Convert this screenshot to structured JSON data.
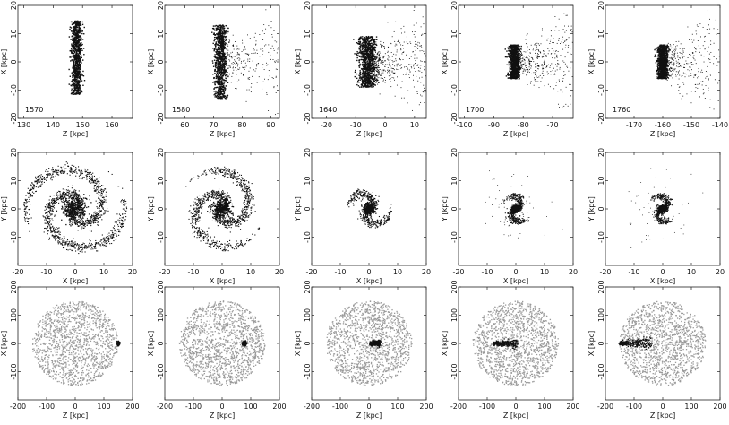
{
  "figure": {
    "colors": {
      "ink": "#111111",
      "halo_gray": "#9a9a9a",
      "frame": "#222222",
      "background": "#ffffff"
    }
  },
  "chart_data": [
    {
      "type": "scatter",
      "id": "top-1570",
      "time_label": "1570",
      "xlabel": "Z [kpc]",
      "ylabel": "X [kpc]",
      "xlim": [
        128,
        167
      ],
      "ylim": [
        -20,
        20
      ],
      "xticks": [
        130,
        140,
        150,
        160
      ],
      "yticks": [
        -20,
        -10,
        0,
        10,
        20
      ],
      "feature": "edge-on disk at Z≈148 spanning X -10..15"
    },
    {
      "type": "scatter",
      "id": "top-1580",
      "time_label": "1580",
      "xlabel": "Z [kpc]",
      "ylabel": "X [kpc]",
      "xlim": [
        53,
        93
      ],
      "ylim": [
        -20,
        20
      ],
      "xticks": [
        60,
        70,
        80,
        90
      ],
      "yticks": [
        -20,
        -10,
        0,
        10,
        20
      ],
      "feature": "edge-on disk at Z≈72 with tail toward +Z"
    },
    {
      "type": "scatter",
      "id": "top-1640",
      "time_label": "1640",
      "xlabel": "Z [kpc]",
      "ylabel": "X [kpc]",
      "xlim": [
        -25,
        14
      ],
      "ylim": [
        -20,
        20
      ],
      "xticks": [
        -20,
        -10,
        0,
        10
      ],
      "yticks": [
        -20,
        -10,
        0,
        10,
        20
      ],
      "feature": "compressed disk at Z≈-6 with wide fan toward +Z"
    },
    {
      "type": "scatter",
      "id": "top-1700",
      "time_label": "1700",
      "xlabel": "Z [kpc]",
      "ylabel": "X [kpc]",
      "xlim": [
        -102,
        -63
      ],
      "ylim": [
        -20,
        20
      ],
      "xticks": [
        -100,
        -90,
        -80,
        -70
      ],
      "yticks": [
        -20,
        -10,
        0,
        10,
        20
      ],
      "feature": "disk at Z≈-83 with stripped fan"
    },
    {
      "type": "scatter",
      "id": "top-1760",
      "time_label": "1760",
      "xlabel": "Z [kpc]",
      "ylabel": "X [kpc]",
      "xlim": [
        -180,
        -140
      ],
      "ylim": [
        -20,
        20
      ],
      "xticks": [
        -170,
        -160,
        -150,
        -140
      ],
      "yticks": [
        -20,
        -10,
        0,
        10,
        20
      ],
      "feature": "disk at Z≈-160 with tail"
    },
    {
      "type": "scatter",
      "id": "mid-1",
      "xlabel": "X [kpc]",
      "ylabel": "Y [kpc]",
      "xlim": [
        -20,
        20
      ],
      "ylim": [
        -20,
        20
      ],
      "xticks": [
        -20,
        -10,
        0,
        10,
        20
      ],
      "yticks": [
        -10,
        0,
        10,
        20
      ],
      "feature": "face-on spiral, radius ≈18"
    },
    {
      "type": "scatter",
      "id": "mid-2",
      "xlabel": "X [kpc]",
      "ylabel": "Y [kpc]",
      "xlim": [
        -20,
        20
      ],
      "ylim": [
        -20,
        20
      ],
      "xticks": [
        -20,
        -10,
        0,
        10,
        20
      ],
      "yticks": [
        -10,
        0,
        10,
        20
      ],
      "feature": "face-on spiral, radius ≈15, clumpy"
    },
    {
      "type": "scatter",
      "id": "mid-3",
      "xlabel": "X [kpc]",
      "ylabel": "Y [kpc]",
      "xlim": [
        -20,
        20
      ],
      "ylim": [
        -20,
        20
      ],
      "xticks": [
        -20,
        -10,
        0,
        10,
        20
      ],
      "yticks": [
        -10,
        0,
        10,
        20
      ],
      "feature": "truncated disk, radius ≈8"
    },
    {
      "type": "scatter",
      "id": "mid-4",
      "xlabel": "X [kpc]",
      "ylabel": "Y [kpc]",
      "xlim": [
        -20,
        20
      ],
      "ylim": [
        -20,
        20
      ],
      "xticks": [
        -20,
        -10,
        0,
        10,
        20
      ],
      "yticks": [
        -10,
        0,
        10,
        20
      ],
      "feature": "truncated disk, radius ≈5"
    },
    {
      "type": "scatter",
      "id": "mid-5",
      "xlabel": "X [kpc]",
      "ylabel": "Y [kpc]",
      "xlim": [
        -20,
        20
      ],
      "ylim": [
        -20,
        20
      ],
      "xticks": [
        -20,
        -10,
        0,
        10,
        20
      ],
      "yticks": [
        -10,
        0,
        10,
        20
      ],
      "feature": "truncated disk, radius ≈5"
    },
    {
      "type": "scatter",
      "id": "bot-1",
      "xlabel": "Z [kpc]",
      "ylabel": "X [kpc]",
      "xlim": [
        -200,
        200
      ],
      "ylim": [
        -200,
        200
      ],
      "xticks": [
        -200,
        -100,
        0,
        100,
        200
      ],
      "yticks": [
        -100,
        0,
        100,
        200
      ],
      "feature": "gray halo radius ≈150, galaxy at Z≈148"
    },
    {
      "type": "scatter",
      "id": "bot-2",
      "xlabel": "Z [kpc]",
      "ylabel": "X [kpc]",
      "xlim": [
        -200,
        200
      ],
      "ylim": [
        -200,
        200
      ],
      "xticks": [
        -200,
        -100,
        0,
        100,
        200
      ],
      "yticks": [
        -100,
        0,
        100,
        200
      ],
      "feature": "gray halo, galaxy at Z≈72"
    },
    {
      "type": "scatter",
      "id": "bot-3",
      "xlabel": "Z [kpc]",
      "ylabel": "X [kpc]",
      "xlim": [
        -200,
        200
      ],
      "ylim": [
        -200,
        200
      ],
      "xticks": [
        -200,
        -100,
        0,
        100,
        200
      ],
      "yticks": [
        -100,
        0,
        100,
        200
      ],
      "feature": "gray halo, galaxy at Z≈0 with tail"
    },
    {
      "type": "scatter",
      "id": "bot-4",
      "xlabel": "Z [kpc]",
      "ylabel": "X [kpc]",
      "xlim": [
        -200,
        200
      ],
      "ylim": [
        -200,
        200
      ],
      "xticks": [
        -200,
        -100,
        0,
        100,
        200
      ],
      "yticks": [
        -100,
        0,
        100,
        200
      ],
      "feature": "gray halo, galaxy at Z≈-80 with long tail"
    },
    {
      "type": "scatter",
      "id": "bot-5",
      "xlabel": "Z [kpc]",
      "ylabel": "X [kpc]",
      "xlim": [
        -200,
        200
      ],
      "ylim": [
        -200,
        200
      ],
      "xticks": [
        -200,
        -100,
        0,
        100,
        200
      ],
      "yticks": [
        -100,
        0,
        100,
        200
      ],
      "feature": "gray halo, galaxy at Z≈-160 with long tail"
    }
  ]
}
